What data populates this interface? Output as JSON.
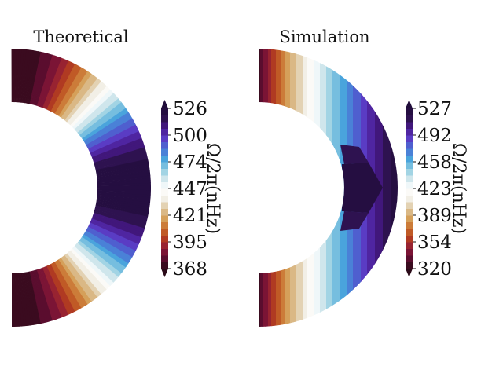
{
  "chart_data": [
    {
      "type": "heatmap",
      "title": "Theoretical",
      "colorbar_label": "Ω/2π(nHz)",
      "colorbar_ticks": [
        "526",
        "500",
        "474",
        "447",
        "421",
        "395",
        "368"
      ],
      "vrange": [
        368,
        526
      ],
      "description_of_field": "rotation rate varies with latitude; slow at poles, fast at equator",
      "pole_value": 368,
      "equator_value": 526
    },
    {
      "type": "heatmap",
      "title": "Simulation",
      "colorbar_label": "Ω/2π(nHz)",
      "colorbar_ticks": [
        "527",
        "492",
        "458",
        "423",
        "389",
        "354",
        "320"
      ],
      "vrange": [
        320,
        527
      ],
      "axis_value": 320,
      "outer_equator_value": 527
    }
  ],
  "colormap": [
    "#2a0a18",
    "#5a0d2e",
    "#8c1838",
    "#b03a22",
    "#c86a28",
    "#d5a05a",
    "#dcc49a",
    "#f2efe6",
    "#ffffff",
    "#cfe6ec",
    "#8ccbe0",
    "#4aa4dc",
    "#4a70d4",
    "#5a3cc4",
    "#4a1a90",
    "#2e1250",
    "#200c3a"
  ]
}
